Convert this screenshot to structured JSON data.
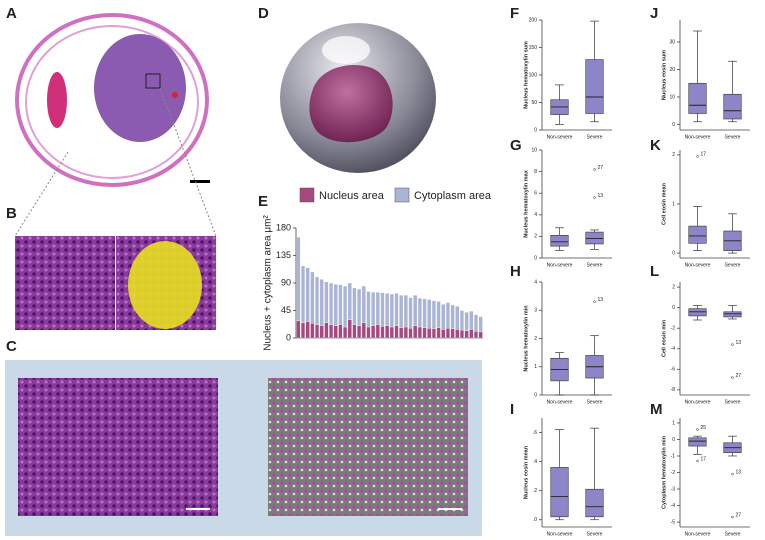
{
  "panels": [
    "A",
    "B",
    "C",
    "D",
    "E",
    "F",
    "G",
    "H",
    "I",
    "J",
    "K",
    "L",
    "M"
  ],
  "chart_data": [
    {
      "type": "bar",
      "ylabel": "Nucleus + cytoplasm area μm²",
      "ylim": [
        0,
        180
      ],
      "yticks": [
        0,
        45,
        90,
        135,
        180
      ],
      "categories": [
        null,
        null,
        null,
        null,
        null,
        null,
        null,
        null,
        null,
        null,
        null,
        null,
        null,
        null,
        null,
        null,
        null,
        null,
        null,
        null,
        null,
        null,
        null,
        null,
        null,
        null,
        null,
        null,
        null,
        null,
        null,
        null,
        null,
        null,
        null,
        null,
        null,
        null,
        null,
        null
      ],
      "series": [
        {
          "name": "Nucleus area",
          "color": "#a6497f",
          "values": [
            28,
            25,
            27,
            24,
            22,
            20,
            25,
            22,
            20,
            22,
            18,
            30,
            22,
            20,
            25,
            18,
            20,
            22,
            19,
            20,
            18,
            20,
            17,
            18,
            16,
            20,
            18,
            17,
            16,
            15,
            17,
            14,
            16,
            15,
            14,
            13,
            12,
            14,
            11,
            10
          ]
        },
        {
          "name": "Cytoplasm area",
          "color": "#aab5d6",
          "values": [
            137,
            93,
            88,
            84,
            78,
            76,
            67,
            68,
            68,
            65,
            67,
            60,
            60,
            60,
            60,
            58,
            55,
            53,
            55,
            53,
            54,
            53,
            53,
            52,
            50,
            50,
            47,
            47,
            47,
            46,
            43,
            41,
            42,
            39,
            38,
            32,
            30,
            30,
            27,
            25
          ]
        }
      ]
    },
    {
      "type": "box",
      "ylabel": "Nucleus hematoxylin sum",
      "ylim": [
        0,
        200
      ],
      "yticks": [
        0,
        50,
        100,
        150,
        200
      ],
      "color": "#8c86c8",
      "categories": [
        "Non-severe",
        "Severe"
      ],
      "boxes": [
        {
          "min": 10,
          "q1": 28,
          "median": 42,
          "q3": 55,
          "max": 82,
          "outliers": []
        },
        {
          "min": 15,
          "q1": 30,
          "median": 60,
          "q3": 128,
          "max": 198,
          "outliers": []
        }
      ]
    },
    {
      "type": "box",
      "ylabel": "Nucleus hematoxylin max",
      "ylim": [
        0,
        10
      ],
      "yticks": [
        0,
        2,
        4,
        6,
        8,
        10
      ],
      "color": "#8c86c8",
      "categories": [
        "Non-severe",
        "Severe"
      ],
      "boxes": [
        {
          "min": 0.7,
          "q1": 1.1,
          "median": 1.5,
          "q3": 2.1,
          "max": 2.8,
          "outliers": []
        },
        {
          "min": 0.8,
          "q1": 1.3,
          "median": 1.8,
          "q3": 2.4,
          "max": 2.6,
          "outliers": [
            {
              "value": 8.2,
              "label": "27"
            },
            {
              "value": 5.6,
              "label": "13"
            }
          ]
        }
      ]
    },
    {
      "type": "box",
      "ylabel": "Nucleus hematoxylin min",
      "ylim": [
        0,
        4
      ],
      "yticks": [
        0,
        1,
        2,
        3,
        4
      ],
      "color": "#8c86c8",
      "categories": [
        "Non-severe",
        "Severe"
      ],
      "boxes": [
        {
          "min": 0,
          "q1": 0.5,
          "median": 0.9,
          "q3": 1.3,
          "max": 1.5,
          "outliers": []
        },
        {
          "min": 0,
          "q1": 0.6,
          "median": 1.0,
          "q3": 1.4,
          "max": 2.1,
          "outliers": [
            {
              "value": 3.3,
              "label": "13"
            }
          ]
        }
      ]
    },
    {
      "type": "box",
      "ylabel": "Nucleus eosin mean",
      "ylim": [
        -0.05,
        0.7
      ],
      "yticks": [
        {
          "value": 0,
          "label": ".0"
        },
        {
          "value": 0.2,
          "label": ".2"
        },
        {
          "value": 0.4,
          "label": ".4"
        },
        {
          "value": 0.6,
          "label": ".6"
        }
      ],
      "color": "#8c86c8",
      "categories": [
        "Non-severe",
        "Severe"
      ],
      "boxes": [
        {
          "min": 0,
          "q1": 0.02,
          "median": 0.16,
          "q3": 0.36,
          "max": 0.62,
          "outliers": []
        },
        {
          "min": 0,
          "q1": 0.02,
          "median": 0.09,
          "q3": 0.21,
          "max": 0.63,
          "outliers": []
        }
      ]
    },
    {
      "type": "box",
      "ylabel": "Nucleus eosin sum",
      "ylim": [
        -2,
        38
      ],
      "yticks": [
        0,
        10,
        20,
        30
      ],
      "color": "#8c86c8",
      "categories": [
        "Non-severe",
        "Severe"
      ],
      "boxes": [
        {
          "min": 1,
          "q1": 4,
          "median": 7,
          "q3": 15,
          "max": 34,
          "outliers": []
        },
        {
          "min": 1,
          "q1": 2,
          "median": 5,
          "q3": 11,
          "max": 23,
          "outliers": []
        }
      ]
    },
    {
      "type": "box",
      "ylabel": "Cell eosin mean",
      "ylim": [
        -0.1,
        2.1
      ],
      "yticks": [
        0,
        1,
        2
      ],
      "color": "#8c86c8",
      "categories": [
        "Non-severe",
        "Severe"
      ],
      "boxes": [
        {
          "min": 0.05,
          "q1": 0.2,
          "median": 0.35,
          "q3": 0.55,
          "max": 0.95,
          "outliers": [
            {
              "value": 1.97,
              "label": "17"
            }
          ]
        },
        {
          "min": 0,
          "q1": 0.05,
          "median": 0.25,
          "q3": 0.45,
          "max": 0.8,
          "outliers": []
        }
      ]
    },
    {
      "type": "box",
      "ylabel": "Cell eosin min",
      "ylim": [
        -8.5,
        2.5
      ],
      "yticks": [
        -8,
        -6,
        -4,
        -2,
        0,
        2
      ],
      "color": "#8c86c8",
      "categories": [
        "Non-severe",
        "Severe"
      ],
      "boxes": [
        {
          "min": -1.2,
          "q1": -0.8,
          "median": -0.4,
          "q3": -0.1,
          "max": 0.2,
          "outliers": []
        },
        {
          "min": -1.1,
          "q1": -0.9,
          "median": -0.6,
          "q3": -0.4,
          "max": 0.2,
          "outliers": [
            {
              "value": -3.6,
              "label": "13"
            },
            {
              "value": -6.8,
              "label": "27"
            }
          ]
        }
      ]
    },
    {
      "type": "box",
      "ylabel": "Cytoplasm hematoxylin min",
      "ylim": [
        -5.3,
        1.3
      ],
      "yticks": [
        -5,
        -4,
        -3,
        -2,
        -1,
        0,
        1
      ],
      "color": "#8c86c8",
      "categories": [
        "Non-severe",
        "Severe"
      ],
      "boxes": [
        {
          "min": -0.9,
          "q1": -0.4,
          "median": -0.1,
          "q3": 0.1,
          "max": 0.2,
          "outliers": [
            {
              "value": 0.6,
              "label": "25"
            },
            {
              "value": -1.3,
              "label": "17"
            }
          ]
        },
        {
          "min": -1.0,
          "q1": -0.8,
          "median": -0.5,
          "q3": -0.2,
          "max": 0.2,
          "outliers": [
            {
              "value": -2.1,
              "label": "13"
            },
            {
              "value": -4.7,
              "label": "27"
            }
          ]
        }
      ]
    }
  ]
}
